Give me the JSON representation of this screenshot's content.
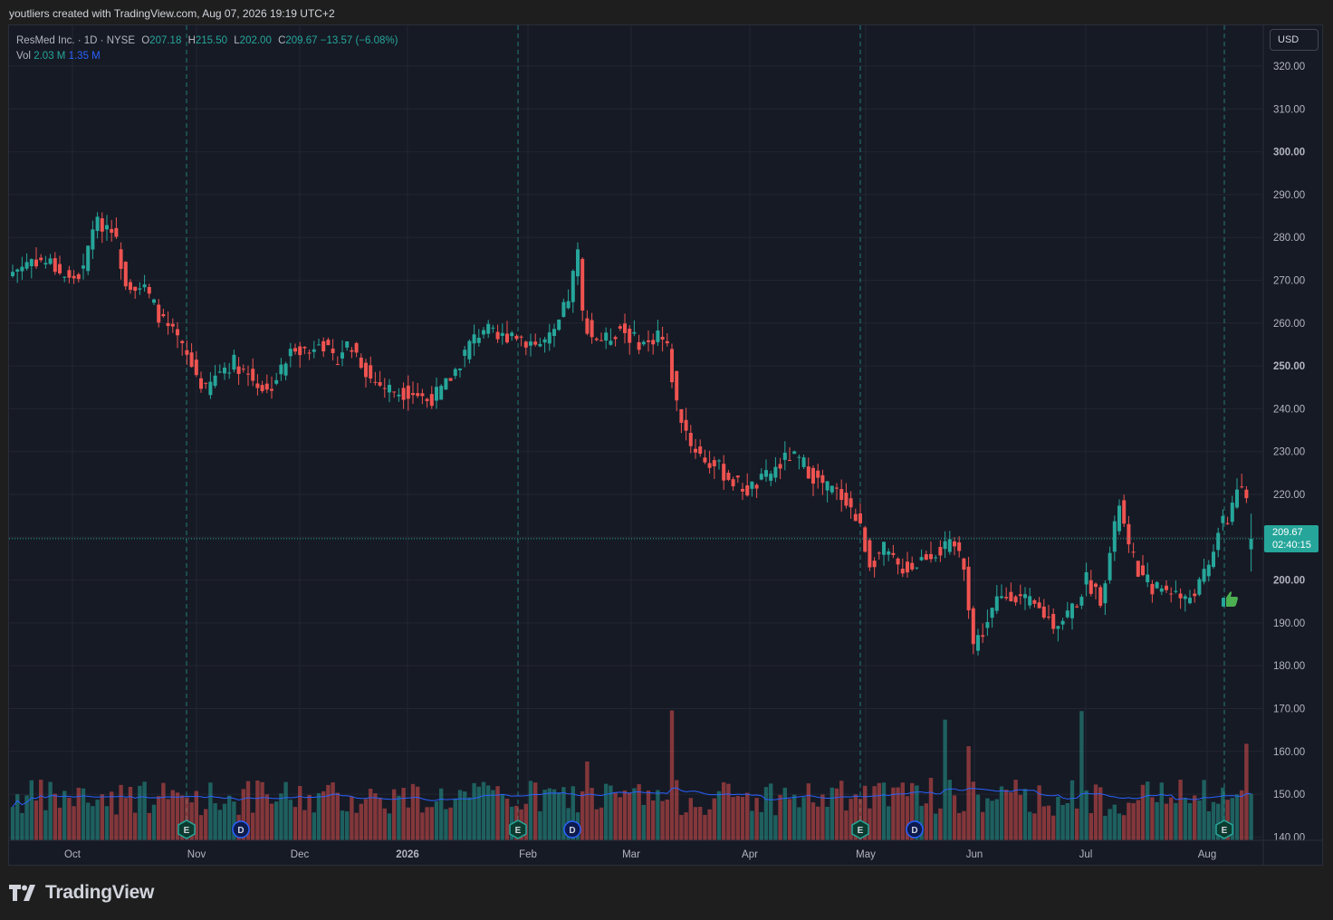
{
  "header": {
    "credit": "youtliers created with TradingView.com, Aug 07, 2026 19:19 UTC+2"
  },
  "legend": {
    "symbol": "ResMed Inc. · 1D · NYSE",
    "o_label": "O",
    "o": "207.18",
    "h_label": "H",
    "h": "215.50",
    "l_label": "L",
    "l": "202.00",
    "c_label": "C",
    "c": "209.67",
    "change": "−13.57 (−6.08%)",
    "vol_label": "Vol",
    "vol": "2.03 M",
    "vol_ma": "1.35 M"
  },
  "currency_button": "USD",
  "last_price": {
    "value": "209.67",
    "countdown": "02:40:15"
  },
  "brand": {
    "name": "TradingView"
  },
  "colors": {
    "up": "#26a69a",
    "down": "#ef5350",
    "vol_ma": "#2962ff",
    "background": "#161a25"
  },
  "icons": [
    "tradingview-logo-icon",
    "thumbs-up-icon",
    "earnings-marker-icon",
    "dividend-marker-icon"
  ],
  "chart_data": {
    "type": "candlestick",
    "symbol": "ResMed Inc.",
    "interval": "1D",
    "exchange": "NYSE",
    "y_axis": {
      "ticks": [
        "320.00",
        "310.00",
        "300.00",
        "290.00",
        "280.00",
        "270.00",
        "260.00",
        "250.00",
        "240.00",
        "230.00",
        "220.00",
        "210.00",
        "200.00",
        "190.00",
        "180.00",
        "170.00",
        "160.00",
        "150.00",
        "140.00"
      ],
      "bold_ticks": [
        "300.00",
        "250.00",
        "200.00"
      ],
      "range": [
        140,
        320
      ]
    },
    "x_axis": {
      "ticks": [
        "Oct",
        "Nov",
        "Dec",
        "2026",
        "Feb",
        "Mar",
        "Apr",
        "May",
        "Jun",
        "Jul",
        "Aug"
      ],
      "bold_ticks": [
        "2026"
      ]
    },
    "events": [
      {
        "type": "E",
        "date": "Oct 30"
      },
      {
        "type": "D",
        "date": "Nov 12"
      },
      {
        "type": "E",
        "date": "Jan 29"
      },
      {
        "type": "D",
        "date": "Feb 12"
      },
      {
        "type": "E",
        "date": "Apr 30"
      },
      {
        "type": "D",
        "date": "May 14"
      },
      {
        "type": "E",
        "date": "Aug 06"
      }
    ],
    "price_path": [
      [
        0,
        272
      ],
      [
        4,
        275
      ],
      [
        8,
        274
      ],
      [
        12,
        270
      ],
      [
        15,
        272
      ],
      [
        17,
        283
      ],
      [
        21,
        283
      ],
      [
        24,
        270
      ],
      [
        28,
        268
      ],
      [
        32,
        260
      ],
      [
        35,
        256
      ],
      [
        38,
        250
      ],
      [
        41,
        244
      ],
      [
        44,
        249
      ],
      [
        47,
        251
      ],
      [
        50,
        248
      ],
      [
        54,
        244
      ],
      [
        57,
        249
      ],
      [
        60,
        255
      ],
      [
        63,
        253
      ],
      [
        65,
        257
      ],
      [
        68,
        251
      ],
      [
        71,
        255
      ],
      [
        73,
        253
      ],
      [
        76,
        247
      ],
      [
        79,
        245
      ],
      [
        82,
        244
      ],
      [
        85,
        244
      ],
      [
        88,
        242
      ],
      [
        91,
        244
      ],
      [
        94,
        249
      ],
      [
        97,
        255
      ],
      [
        100,
        259
      ],
      [
        103,
        256
      ],
      [
        106,
        258
      ],
      [
        109,
        256
      ],
      [
        112,
        255
      ],
      [
        115,
        257
      ],
      [
        118,
        266
      ],
      [
        120,
        276
      ],
      [
        121,
        262
      ],
      [
        123,
        257
      ],
      [
        126,
        256
      ],
      [
        129,
        259
      ],
      [
        132,
        256
      ],
      [
        135,
        255
      ],
      [
        137,
        258
      ],
      [
        139,
        254
      ],
      [
        141,
        241
      ],
      [
        144,
        232
      ],
      [
        147,
        228
      ],
      [
        150,
        226
      ],
      [
        153,
        223
      ],
      [
        156,
        221
      ],
      [
        159,
        223
      ],
      [
        162,
        226
      ],
      [
        165,
        229
      ],
      [
        168,
        227
      ],
      [
        171,
        223
      ],
      [
        174,
        221
      ],
      [
        177,
        219
      ],
      [
        180,
        212
      ],
      [
        182,
        204
      ],
      [
        185,
        207
      ],
      [
        188,
        203
      ],
      [
        191,
        203
      ],
      [
        194,
        206
      ],
      [
        197,
        207
      ],
      [
        200,
        208
      ],
      [
        202,
        204
      ],
      [
        204,
        185
      ],
      [
        206,
        188
      ],
      [
        209,
        195
      ],
      [
        212,
        197
      ],
      [
        215,
        195
      ],
      [
        218,
        193
      ],
      [
        221,
        190
      ],
      [
        223,
        191
      ],
      [
        226,
        195
      ],
      [
        228,
        200
      ],
      [
        231,
        196
      ],
      [
        233,
        206
      ],
      [
        235,
        218
      ],
      [
        237,
        207
      ],
      [
        240,
        200
      ],
      [
        243,
        198
      ],
      [
        246,
        198
      ],
      [
        249,
        195
      ],
      [
        252,
        199
      ],
      [
        254,
        203
      ],
      [
        256,
        212
      ],
      [
        258,
        214
      ],
      [
        260,
        222
      ],
      [
        262,
        218
      ],
      [
        263,
        209.67
      ]
    ],
    "volume_ma_label": "1.35 M"
  }
}
